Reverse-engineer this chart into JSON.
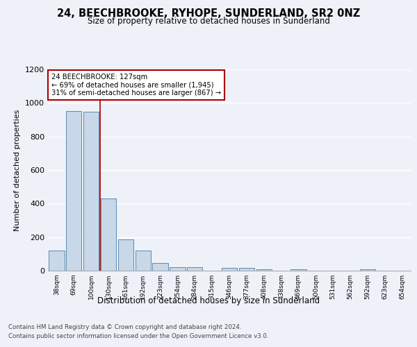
{
  "title": "24, BEECHBROOKE, RYHOPE, SUNDERLAND, SR2 0NZ",
  "subtitle": "Size of property relative to detached houses in Sunderland",
  "xlabel": "Distribution of detached houses by size in Sunderland",
  "ylabel": "Number of detached properties",
  "categories": [
    "38sqm",
    "69sqm",
    "100sqm",
    "130sqm",
    "161sqm",
    "192sqm",
    "223sqm",
    "254sqm",
    "284sqm",
    "315sqm",
    "346sqm",
    "377sqm",
    "408sqm",
    "438sqm",
    "469sqm",
    "500sqm",
    "531sqm",
    "562sqm",
    "592sqm",
    "623sqm",
    "654sqm"
  ],
  "bar_heights": [
    120,
    950,
    948,
    430,
    185,
    120,
    45,
    20,
    20,
    0,
    15,
    15,
    10,
    0,
    10,
    0,
    0,
    0,
    10,
    0,
    0
  ],
  "bar_color": "#c8d8e8",
  "bar_edge_color": "#5a8ab0",
  "property_line_color": "#aa0000",
  "annotation_text": "24 BEECHBROOKE: 127sqm\n← 69% of detached houses are smaller (1,945)\n31% of semi-detached houses are larger (867) →",
  "annotation_box_color": "#ffffff",
  "annotation_box_edge": "#aa0000",
  "ylim": [
    0,
    1200
  ],
  "yticks": [
    0,
    200,
    400,
    600,
    800,
    1000,
    1200
  ],
  "footer_line1": "Contains HM Land Registry data © Crown copyright and database right 2024.",
  "footer_line2": "Contains public sector information licensed under the Open Government Licence v3.0.",
  "bg_color": "#eef2f8",
  "plot_bg_color": "#eef2f8"
}
